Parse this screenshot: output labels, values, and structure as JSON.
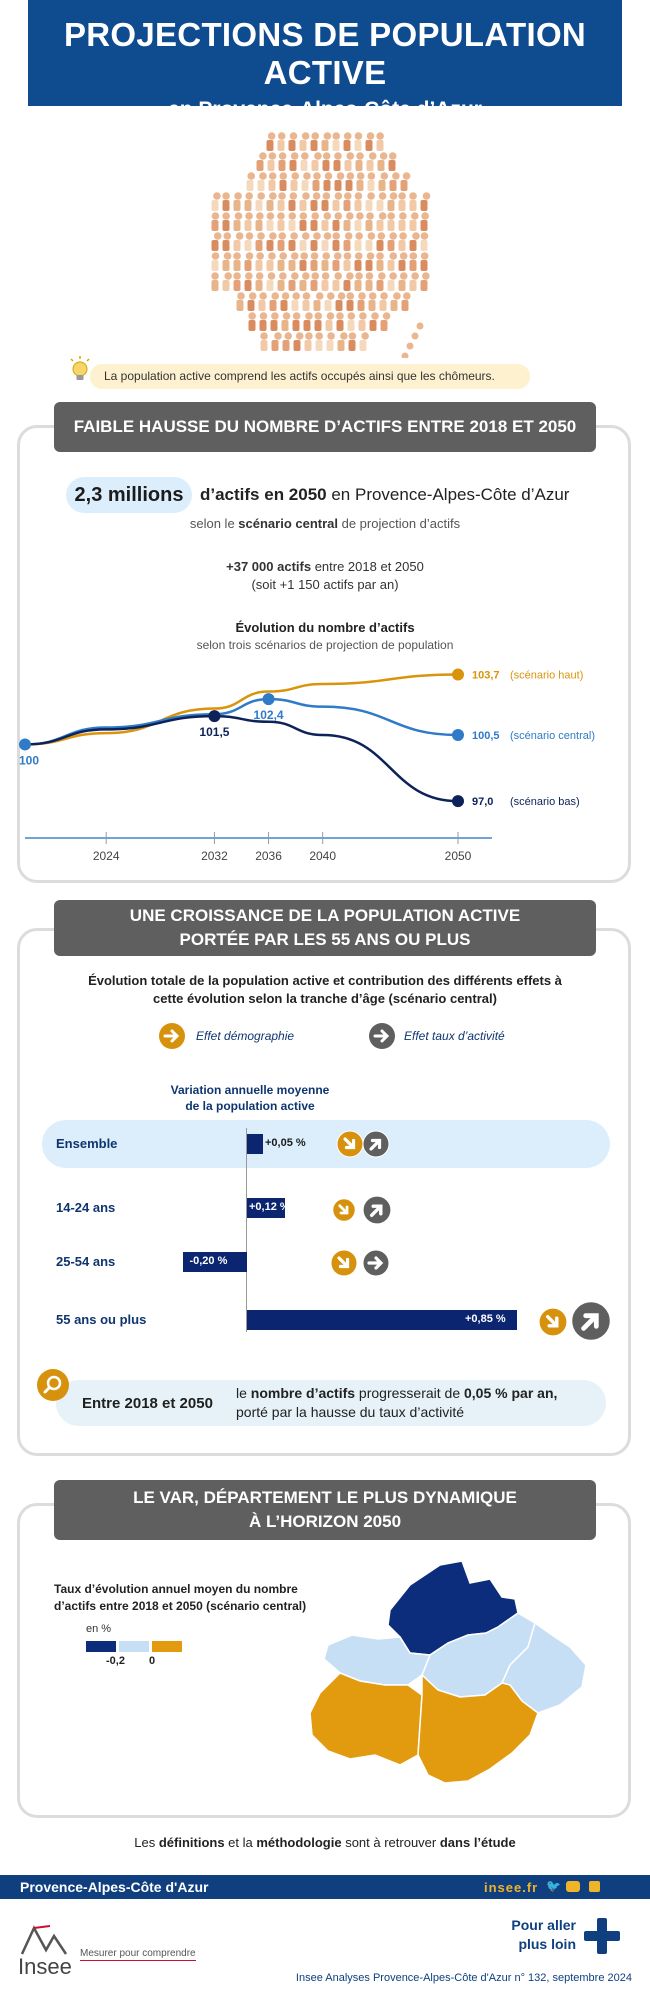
{
  "header": {
    "title": "PROJECTIONS DE POPULATION ACTIVE",
    "subtitle": "en Provence-Alpes-Côte d’Azur"
  },
  "definition": "La population active comprend les actifs occupés ainsi que les chômeurs.",
  "section1": {
    "banner": "FAIBLE HAUSSE DU NOMBRE D’ACTIFS ENTRE 2018 ET 2050",
    "highlight_value": "2,3 millions",
    "highlight_bold": "d’actifs en 2050",
    "highlight_rest": " en Provence-Alpes-Côte d’Azur",
    "scenario_pre": "selon le ",
    "scenario_bold": "scénario central",
    "scenario_post": " de projection d’actifs",
    "gain_bold": "+37 000 actifs",
    "gain_rest": " entre 2018 et 2050",
    "gain_line2": "(soit +1 150 actifs par an)",
    "chart_title": "Évolution du nombre d’actifs",
    "chart_subtitle": "selon trois scénarios de projection de population"
  },
  "chart_data": {
    "type": "line",
    "title": "Évolution du nombre d’actifs",
    "subtitle": "selon trois scénarios de projection de population",
    "x_ticks": [
      "2024",
      "2032",
      "2036",
      "2040",
      "2050"
    ],
    "xlim": [
      2018,
      2050
    ],
    "ylim": [
      96,
      105
    ],
    "series": [
      {
        "name": "(scénario haut)",
        "color": "#d9940b",
        "x": [
          2018,
          2024,
          2032,
          2036,
          2040,
          2050
        ],
        "y": [
          100,
          100.6,
          101.9,
          102.8,
          103.2,
          103.7
        ],
        "end_label": "103,7"
      },
      {
        "name": "(scénario central)",
        "color": "#2f7bc7",
        "x": [
          2018,
          2024,
          2032,
          2036,
          2040,
          2050
        ],
        "y": [
          100,
          100.9,
          101.6,
          102.4,
          102.0,
          100.5
        ],
        "end_label": "100,5"
      },
      {
        "name": "(scénario bas)",
        "color": "#0c2259",
        "x": [
          2018,
          2024,
          2032,
          2036,
          2040,
          2050
        ],
        "y": [
          100,
          100.8,
          101.5,
          101.2,
          100.5,
          97.0
        ],
        "end_label": "97,0"
      }
    ],
    "point_labels": [
      {
        "text": "100",
        "x": 2018,
        "y": 100,
        "color": "#2f7bc7"
      },
      {
        "text": "101,5",
        "x": 2032,
        "y": 101.5,
        "color": "#0c2259"
      },
      {
        "text": "102,4",
        "x": 2036,
        "y": 102.4,
        "color": "#2f7bc7"
      }
    ]
  },
  "section2": {
    "banner_line1": "UNE CROISSANCE DE LA POPULATION ACTIVE",
    "banner_line2": "PORTÉE PAR LES 55 ANS OU PLUS",
    "title_line1": "Évolution totale de la population active et contribution des différents effets à",
    "title_line2": "cette évolution selon la tranche d’âge (scénario central)",
    "legend_demo": "Effet démographie",
    "legend_taux": "Effet taux d’activité",
    "axis_title_1": "Variation annuelle moyenne",
    "axis_title_2": "de la population active",
    "rows": [
      {
        "label": "Ensemble",
        "value": 0.05,
        "value_label": "+0,05 %"
      },
      {
        "label": "14-24 ans",
        "value": 0.12,
        "value_label": "+0,12 %"
      },
      {
        "label": "25-54 ans",
        "value": -0.2,
        "value_label": "-0,20 %"
      },
      {
        "label": "55 ans ou plus",
        "value": 0.85,
        "value_label": "+0,85 %"
      }
    ],
    "conclusion_label": "Entre 2018 et 2050",
    "conclusion_pre": "le ",
    "conclusion_bold1": "nombre d’actifs",
    "conclusion_mid": " progresserait de ",
    "conclusion_bold2": "0,05 % par an,",
    "conclusion_line2": "porté par la hausse du taux d’activité"
  },
  "section3": {
    "banner_line1": "LE VAR, DÉPARTEMENT LE PLUS DYNAMIQUE",
    "banner_line2": "À L’HORIZON 2050",
    "map_title_1": "Taux d’évolution annuel moyen du nombre",
    "map_title_2": "d’actifs entre 2018 et 2050 (scénario central)",
    "unit": "en %",
    "legend_low": "-0,2",
    "legend_mid": "0",
    "colors": {
      "low": "#0c2d7c",
      "mid": "#c7dff5",
      "high": "#e29a0e"
    }
  },
  "note": {
    "pre": "Les ",
    "b1": "définitions",
    "m1": " et la ",
    "b2": "méthodologie",
    "m2": " sont à retrouver ",
    "b3": "dans l’étude"
  },
  "footer": {
    "region": "Provence-Alpes-Côte d'Azur",
    "site": "insee.fr",
    "logo": "Insee",
    "tagline": "Mesurer pour comprendre",
    "more_1": "Pour aller",
    "more_2": "plus loin",
    "publication": "Insee Analyses Provence-Alpes-Côte d'Azur n° 132, septembre 2024"
  }
}
